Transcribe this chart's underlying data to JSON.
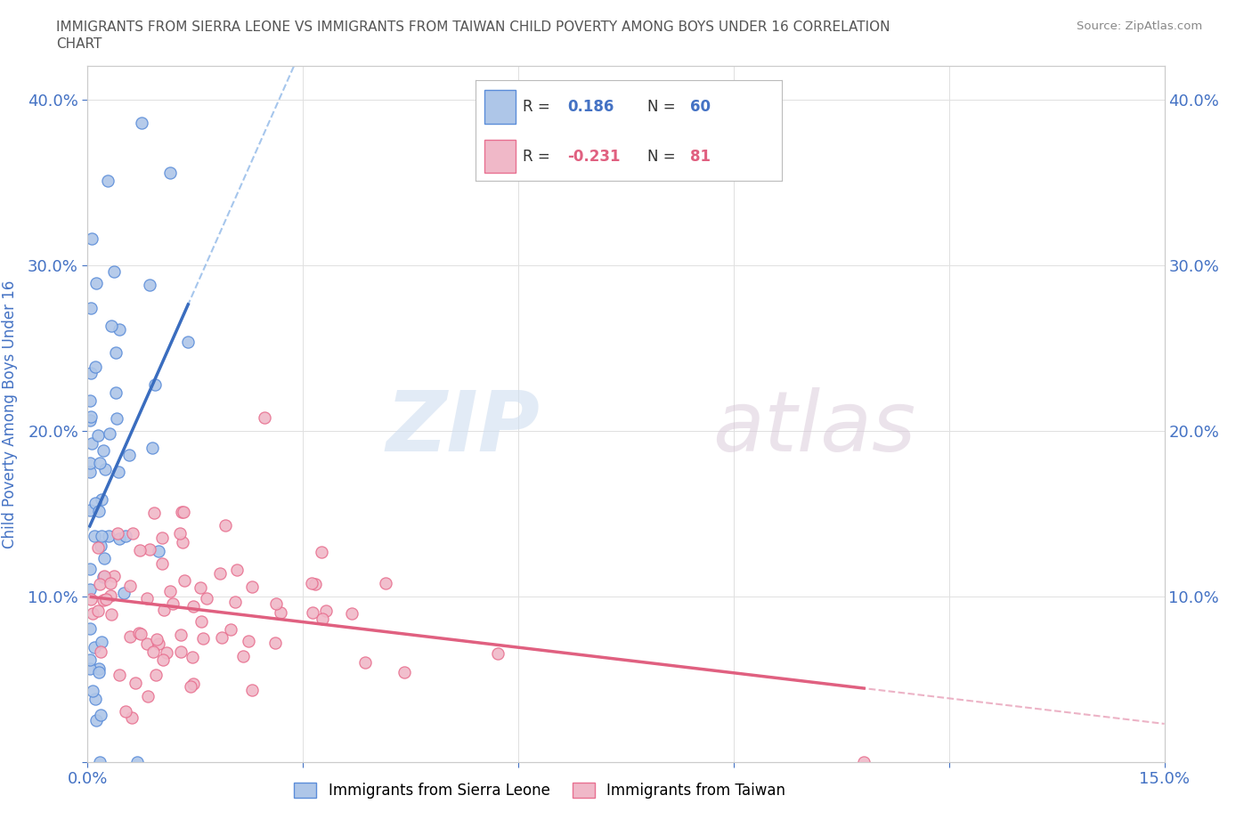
{
  "title_line1": "IMMIGRANTS FROM SIERRA LEONE VS IMMIGRANTS FROM TAIWAN CHILD POVERTY AMONG BOYS UNDER 16 CORRELATION",
  "title_line2": "CHART",
  "source": "Source: ZipAtlas.com",
  "ylabel": "Child Poverty Among Boys Under 16",
  "xlim": [
    0.0,
    0.15
  ],
  "ylim": [
    0.0,
    0.42
  ],
  "xtick_vals": [
    0.0,
    0.03,
    0.06,
    0.09,
    0.12,
    0.15
  ],
  "xticklabels": [
    "0.0%",
    "",
    "",
    "",
    "",
    "15.0%"
  ],
  "ytick_vals": [
    0.0,
    0.1,
    0.2,
    0.3,
    0.4
  ],
  "yticklabels_left": [
    "",
    "10.0%",
    "20.0%",
    "30.0%",
    "40.0%"
  ],
  "yticklabels_right": [
    "",
    "10.0%",
    "20.0%",
    "30.0%",
    "40.0%"
  ],
  "sierra_leone_color": "#aec6e8",
  "taiwan_color": "#f0b8c8",
  "sierra_leone_edge_color": "#5b8dd9",
  "taiwan_edge_color": "#e87090",
  "sierra_leone_line_color": "#3a6dbf",
  "taiwan_line_color": "#e06080",
  "sierra_leone_dash_color": "#90b8e8",
  "taiwan_dash_color": "#e8a0b8",
  "R_sl": 0.186,
  "N_sl": 60,
  "R_tw": -0.231,
  "N_tw": 81,
  "legend_label_sl": "Immigrants from Sierra Leone",
  "legend_label_tw": "Immigrants from Taiwan",
  "watermark_zip": "ZIP",
  "watermark_atlas": "atlas",
  "background_color": "#ffffff",
  "grid_color": "#e0e0e0",
  "title_color": "#555555",
  "axis_label_color": "#4472c4",
  "tick_label_color": "#4472c4",
  "legend_text_color": "#333333",
  "legend_value_color_sl": "#4472c4",
  "legend_value_color_tw": "#e06080"
}
